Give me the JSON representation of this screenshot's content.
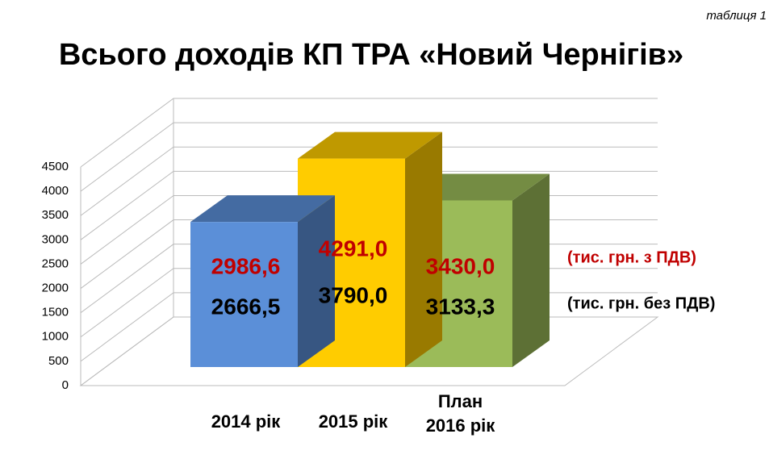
{
  "chart_data": {
    "type": "bar3d",
    "title": "Всього доходів КП ТРА «Новий Чернігів»",
    "annotation": "таблиця 1",
    "categories": [
      "2014 рік",
      "2015 рік",
      "План\n2016 рік"
    ],
    "series": [
      {
        "name": "(тис. грн. з ПДВ)",
        "color": "#c00000",
        "bar_colors": [
          "#5b8fd8",
          "#ffcc00",
          "#9bbb59"
        ],
        "values": [
          2986.6,
          4291.0,
          3430.0
        ],
        "value_labels": [
          "2986,6",
          "4291,0",
          "3430,0"
        ]
      },
      {
        "name": "(тис. грн. без ПДВ)",
        "color": "#000000",
        "values": [
          2666.5,
          3790.0,
          3133.3
        ],
        "value_labels": [
          "2666,5",
          "3790,0",
          "3133,3"
        ]
      }
    ],
    "ylim": [
      0,
      4500
    ],
    "yticks": [
      0,
      500,
      1000,
      1500,
      2000,
      2500,
      3000,
      3500,
      4000,
      4500
    ],
    "grid": true
  }
}
